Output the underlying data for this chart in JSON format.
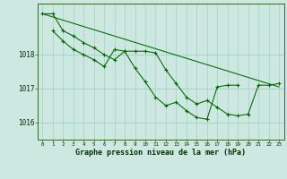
{
  "bg_color": "#cce8e0",
  "grid_color_v": "#99ccbb",
  "grid_color_h": "#99ccbb",
  "line_color": "#006600",
  "xlabel": "Graphe pression niveau de la mer (hPa)",
  "xlabel_color": "#003300",
  "tick_color": "#003300",
  "ylim": [
    1015.5,
    1019.5
  ],
  "xlim": [
    -0.5,
    23.5
  ],
  "yticks": [
    1016,
    1017,
    1018
  ],
  "xticks": [
    0,
    1,
    2,
    3,
    4,
    5,
    6,
    7,
    8,
    9,
    10,
    11,
    12,
    13,
    14,
    15,
    16,
    17,
    18,
    19,
    20,
    21,
    22,
    23
  ],
  "series": [
    {
      "x": [
        0,
        1,
        2,
        3,
        4,
        5,
        6,
        7,
        8,
        9,
        10,
        11,
        12,
        13,
        14,
        15,
        16,
        17,
        18,
        19,
        20,
        21,
        22,
        23
      ],
      "y": [
        1019.2,
        1019.2,
        1018.7,
        1018.55,
        1018.35,
        1018.2,
        1018.0,
        1017.85,
        1018.1,
        1018.1,
        1018.1,
        1018.05,
        1017.55,
        1017.15,
        1016.75,
        1016.55,
        1016.65,
        1016.45,
        1016.25,
        1016.2,
        1016.25,
        1017.1,
        1017.1,
        1017.15
      ]
    },
    {
      "x": [
        1,
        2,
        3,
        4,
        5,
        6,
        7,
        8,
        9,
        10,
        11,
        12,
        13,
        14,
        15,
        16,
        17,
        18,
        19,
        20,
        21,
        22,
        23
      ],
      "y": [
        1018.7,
        1018.4,
        1018.15,
        1018.0,
        1017.85,
        1017.65,
        1018.15,
        1018.1,
        1017.6,
        1017.2,
        1016.75,
        1016.5,
        1016.6,
        1016.35,
        1016.15,
        1016.1,
        1017.05,
        1017.1,
        1017.1,
        null,
        null,
        null,
        null
      ]
    },
    {
      "x": [
        0,
        23
      ],
      "y": [
        1019.2,
        1017.05
      ],
      "no_marker": true
    }
  ]
}
